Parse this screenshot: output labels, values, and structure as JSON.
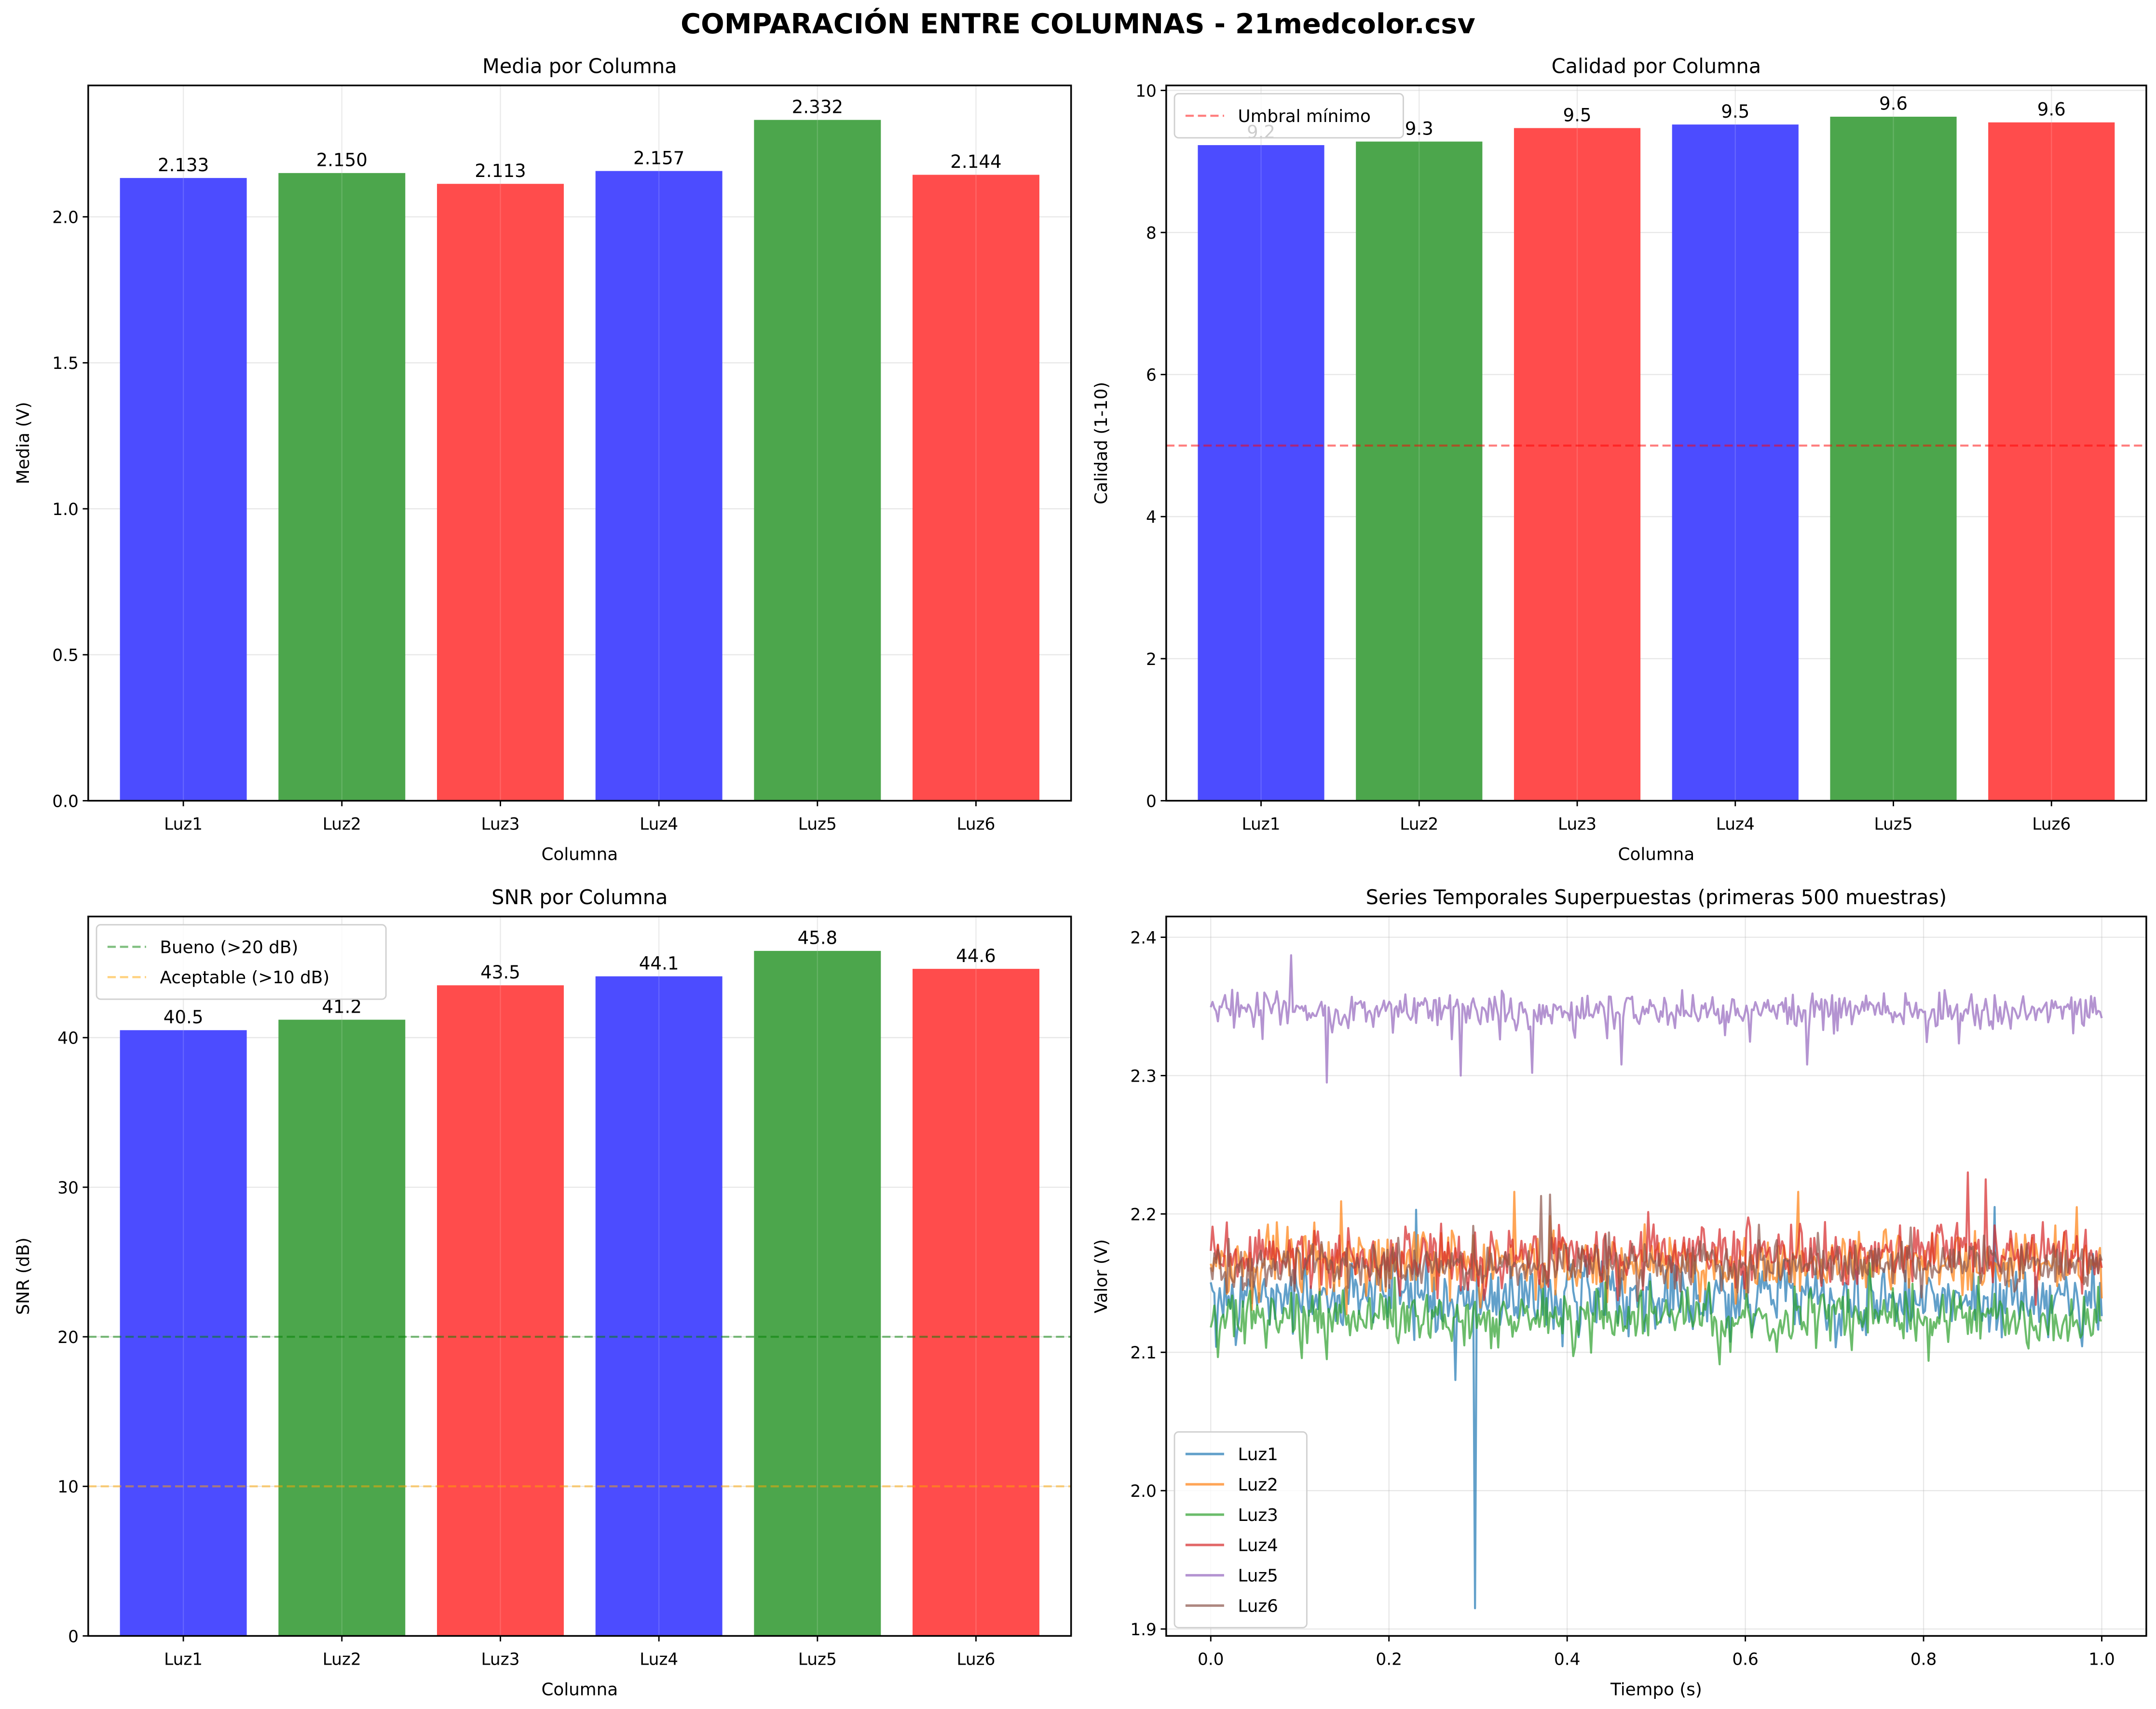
{
  "figure": {
    "title": "COMPARACIÓN ENTRE COLUMNAS - 21medcolor.csv"
  },
  "chart_data": [
    {
      "id": "media",
      "type": "bar",
      "title": "Media por Columna",
      "xlabel": "Columna",
      "ylabel": "Media (V)",
      "categories": [
        "Luz1",
        "Luz2",
        "Luz3",
        "Luz4",
        "Luz5",
        "Luz6"
      ],
      "values": [
        2.133,
        2.15,
        2.113,
        2.157,
        2.332,
        2.144
      ],
      "labels": [
        "2.133",
        "2.150",
        "2.113",
        "2.157",
        "2.332",
        "2.144"
      ],
      "bar_colors": [
        "#4c4cff",
        "#4ca64c",
        "#ff4c4c",
        "#4c4cff",
        "#4ca64c",
        "#ff4c4c"
      ],
      "ylim": [
        0,
        2.45
      ],
      "yticks": [
        0.0,
        0.5,
        1.0,
        1.5,
        2.0
      ],
      "ytick_labels": [
        "0.0",
        "0.5",
        "1.0",
        "1.5",
        "2.0"
      ],
      "grid": true,
      "hlines": [],
      "legend": null
    },
    {
      "id": "calidad",
      "type": "bar",
      "title": "Calidad por Columna",
      "xlabel": "Columna",
      "ylabel": "Calidad (1-10)",
      "categories": [
        "Luz1",
        "Luz2",
        "Luz3",
        "Luz4",
        "Luz5",
        "Luz6"
      ],
      "values": [
        9.23,
        9.28,
        9.47,
        9.52,
        9.63,
        9.55
      ],
      "labels": [
        "9.2",
        "9.3",
        "9.5",
        "9.5",
        "9.6",
        "9.6"
      ],
      "bar_colors": [
        "#4c4cff",
        "#4ca64c",
        "#ff4c4c",
        "#4c4cff",
        "#4ca64c",
        "#ff4c4c"
      ],
      "ylim": [
        0,
        10.07
      ],
      "yticks": [
        0,
        2,
        4,
        6,
        8,
        10
      ],
      "ytick_labels": [
        "0",
        "2",
        "4",
        "6",
        "8",
        "10"
      ],
      "grid": true,
      "hlines": [
        {
          "y": 5,
          "color": "#ff0000",
          "alpha": 0.5,
          "label": "Umbral mínimo"
        }
      ],
      "legend": {
        "placement": "top-left",
        "entries": [
          "Umbral mínimo"
        ]
      }
    },
    {
      "id": "snr",
      "type": "bar",
      "title": "SNR por Columna",
      "xlabel": "Columna",
      "ylabel": "SNR (dB)",
      "categories": [
        "Luz1",
        "Luz2",
        "Luz3",
        "Luz4",
        "Luz5",
        "Luz6"
      ],
      "values": [
        40.5,
        41.2,
        43.5,
        44.1,
        45.8,
        44.6
      ],
      "labels": [
        "40.5",
        "41.2",
        "43.5",
        "44.1",
        "45.8",
        "44.6"
      ],
      "bar_colors": [
        "#4c4cff",
        "#4ca64c",
        "#ff4c4c",
        "#4c4cff",
        "#4ca64c",
        "#ff4c4c"
      ],
      "ylim": [
        0,
        48.1
      ],
      "yticks": [
        0,
        10,
        20,
        30,
        40
      ],
      "ytick_labels": [
        "0",
        "10",
        "20",
        "30",
        "40"
      ],
      "grid": true,
      "hlines": [
        {
          "y": 20,
          "color": "#008000",
          "alpha": 0.5,
          "label": "Bueno (>20 dB)"
        },
        {
          "y": 10,
          "color": "#ffa500",
          "alpha": 0.5,
          "label": "Aceptable (>10 dB)"
        }
      ],
      "legend": {
        "placement": "top-left",
        "entries": [
          "Bueno (>20 dB)",
          "Aceptable (>10 dB)"
        ]
      }
    },
    {
      "id": "series",
      "type": "line",
      "title": "Series Temporales Superpuestas (primeras 500 muestras)",
      "xlabel": "Tiempo (s)",
      "ylabel": "Valor (V)",
      "xlim": [
        -0.05,
        1.05
      ],
      "ylim": [
        1.895,
        2.415
      ],
      "xticks": [
        0.0,
        0.2,
        0.4,
        0.6,
        0.8,
        1.0
      ],
      "xtick_labels": [
        "0.0",
        "0.2",
        "0.4",
        "0.6",
        "0.8",
        "1.0"
      ],
      "yticks": [
        1.9,
        2.0,
        2.1,
        2.2,
        2.3,
        2.4
      ],
      "ytick_labels": [
        "1.9",
        "2.0",
        "2.1",
        "2.2",
        "2.3",
        "2.4"
      ],
      "grid": true,
      "samples": 500,
      "t_range": [
        0.0,
        1.0
      ],
      "series": [
        {
          "name": "Luz1",
          "color": "#1f77b4",
          "mean": 2.138,
          "noise_std": 0.013,
          "spikes": [
            {
              "t": 0.296,
              "v": 1.915
            },
            {
              "t": 0.275,
              "v": 2.08
            },
            {
              "t": 0.23,
              "v": 2.203
            },
            {
              "t": 0.88,
              "v": 2.205
            }
          ]
        },
        {
          "name": "Luz2",
          "color": "#ff7f0e",
          "mean": 2.165,
          "noise_std": 0.012,
          "spikes": [
            {
              "t": 0.34,
              "v": 2.216
            },
            {
              "t": 0.66,
              "v": 2.216
            }
          ]
        },
        {
          "name": "Luz3",
          "color": "#2ca02c",
          "mean": 2.125,
          "noise_std": 0.01,
          "spikes": []
        },
        {
          "name": "Luz4",
          "color": "#d62728",
          "mean": 2.17,
          "noise_std": 0.011,
          "spikes": [
            {
              "t": 0.85,
              "v": 2.23
            },
            {
              "t": 0.87,
              "v": 2.225
            }
          ]
        },
        {
          "name": "Luz5",
          "color": "#9467bd",
          "mean": 2.347,
          "noise_std": 0.007,
          "spikes": [
            {
              "t": 0.09,
              "v": 2.387
            },
            {
              "t": 0.13,
              "v": 2.295
            },
            {
              "t": 0.28,
              "v": 2.3
            },
            {
              "t": 0.36,
              "v": 2.302
            },
            {
              "t": 0.46,
              "v": 2.308
            },
            {
              "t": 0.67,
              "v": 2.308
            }
          ]
        },
        {
          "name": "Luz6",
          "color": "#8c564b",
          "mean": 2.163,
          "noise_std": 0.008,
          "spikes": [
            {
              "t": 0.37,
              "v": 2.213
            },
            {
              "t": 0.38,
              "v": 2.214
            }
          ]
        }
      ],
      "legend": {
        "placement": "lower-left",
        "entries": [
          "Luz1",
          "Luz2",
          "Luz3",
          "Luz4",
          "Luz5",
          "Luz6"
        ]
      }
    }
  ]
}
